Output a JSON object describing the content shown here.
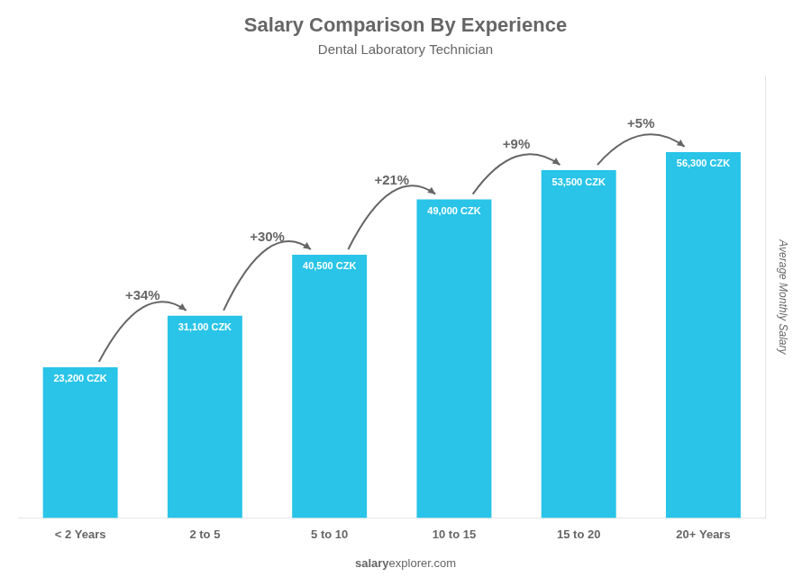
{
  "chart_data": {
    "type": "bar",
    "title": "Salary Comparison By Experience",
    "subtitle": "Dental Laboratory Technician",
    "categories": [
      "< 2 Years",
      "2 to 5",
      "5 to 10",
      "10 to 15",
      "15 to 20",
      "20+ Years"
    ],
    "values": [
      23200,
      31100,
      40500,
      49000,
      53500,
      56300
    ],
    "value_labels": [
      "23,200 CZK",
      "31,100 CZK",
      "40,500 CZK",
      "49,000 CZK",
      "53,500 CZK",
      "56,300 CZK"
    ],
    "data_labels": true,
    "color": "#29C4E8",
    "ylabel": "Average Monthly Salary",
    "ylim": [
      0,
      68000
    ],
    "tick_labels": "x",
    "grid": false,
    "annotations": [
      "+34%",
      "+30%",
      "+21%",
      "+9%",
      "+5%"
    ],
    "footer": [
      "salary",
      "explorer.com"
    ]
  }
}
